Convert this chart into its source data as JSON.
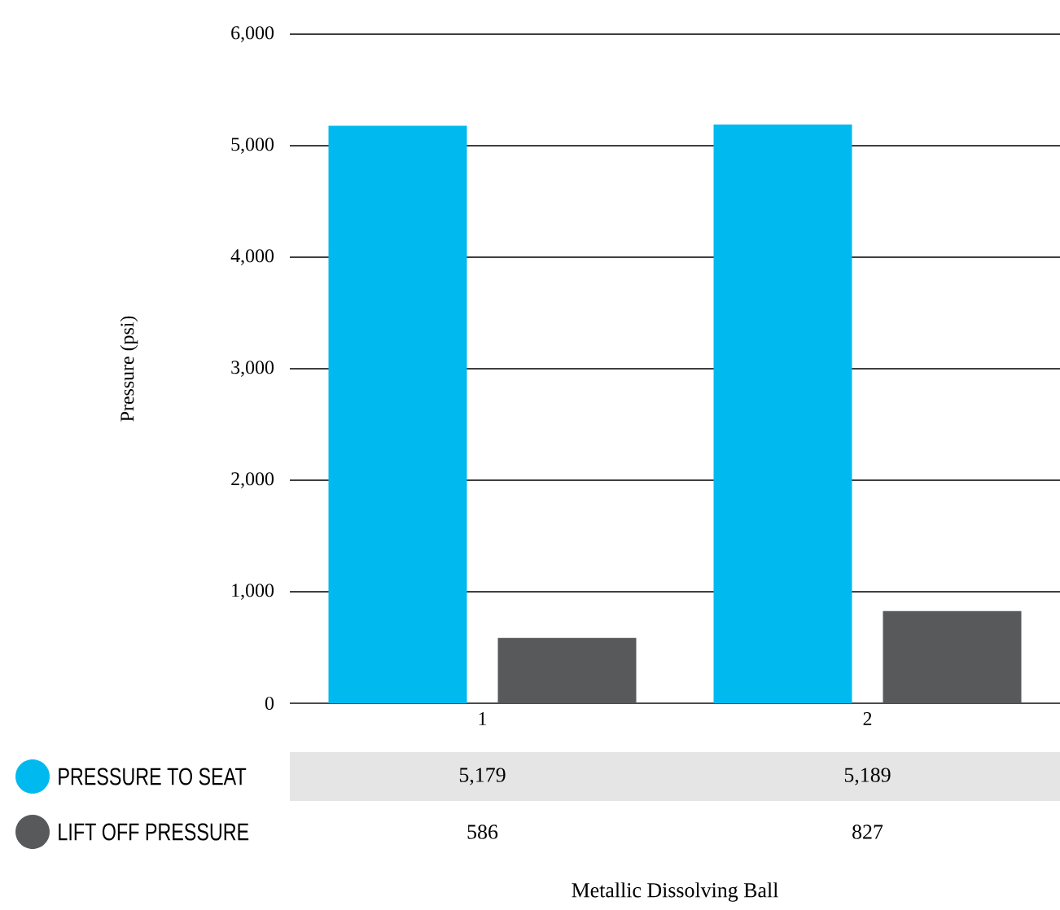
{
  "chart_data": {
    "type": "bar",
    "annotations": [
      "Metallic Dissolving Ball"
    ],
    "ylabel": "Pressure (psi)",
    "categories": [
      "1",
      "2"
    ],
    "series": [
      {
        "name": "PRESSURE TO SEAT",
        "color": "#00b9ef",
        "values": [
          5179,
          5189
        ],
        "value_labels": [
          "5,179",
          "5,189"
        ]
      },
      {
        "name": "LIFT OFF PRESSURE",
        "color": "#58595b",
        "values": [
          586,
          827
        ],
        "value_labels": [
          "586",
          "827"
        ]
      }
    ],
    "ylim": [
      0,
      6000
    ],
    "yticks": [
      0,
      {
        "value": 1000,
        "label": "1,000"
      },
      {
        "value": 2000,
        "label": "2,000"
      },
      {
        "value": 3000,
        "label": "3,000"
      },
      {
        "value": 4000,
        "label": "4,000"
      },
      {
        "value": 5000,
        "label": "5,000"
      },
      {
        "value": 6000,
        "label": "6,000"
      }
    ],
    "grid": "y",
    "legend": "bottom left"
  }
}
